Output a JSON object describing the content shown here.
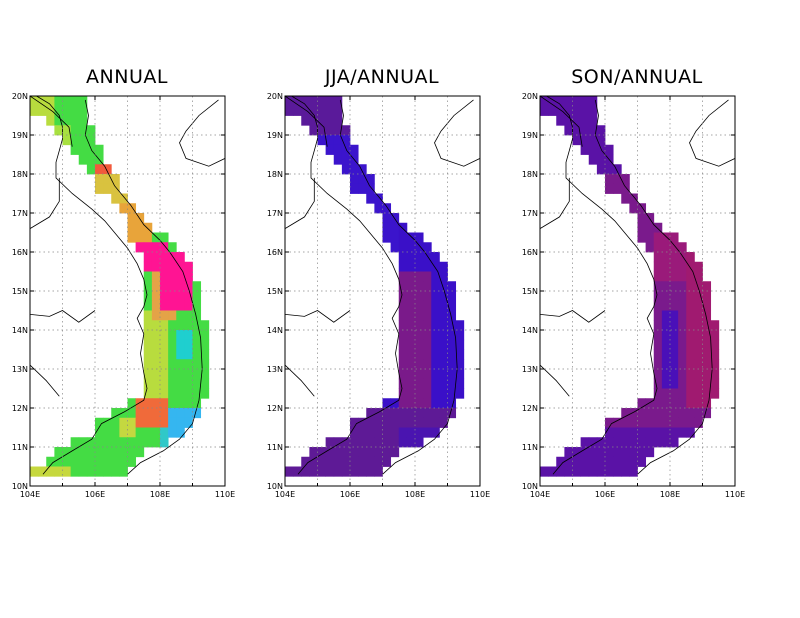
{
  "panels": [
    {
      "title": "ANNUAL",
      "palette": "annual"
    },
    {
      "title": "JJA/ANNUAL",
      "palette": "jja"
    },
    {
      "title": "SON/ANNUAL",
      "palette": "son"
    }
  ],
  "axes": {
    "lat_labels": [
      "20N",
      "19N",
      "18N",
      "17N",
      "16N",
      "15N",
      "14N",
      "13N",
      "12N",
      "11N",
      "10N"
    ],
    "lon_labels": [
      "104E",
      "106E",
      "108E",
      "110E"
    ],
    "lat_range": [
      10,
      20
    ],
    "lon_range": [
      104,
      110
    ]
  },
  "colors": {
    "grid": "#888888",
    "coast": "#000000",
    "frame": "#000000"
  }
}
